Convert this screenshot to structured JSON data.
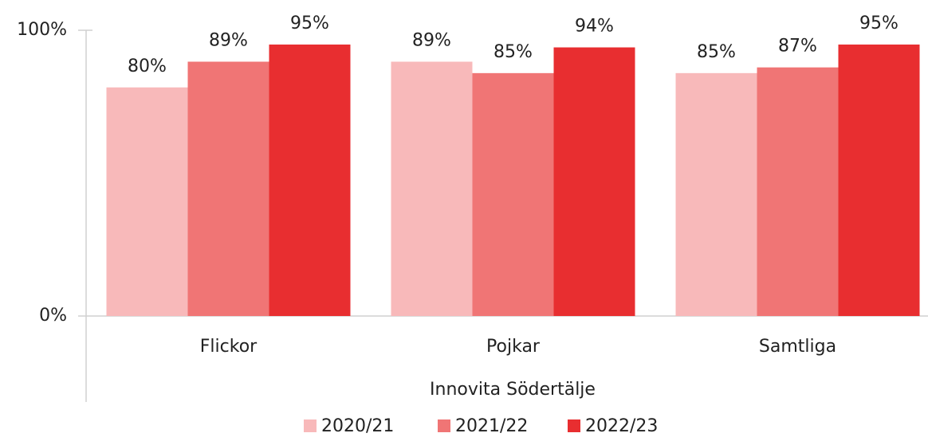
{
  "chart_data": {
    "type": "bar",
    "categories": [
      "Flickor",
      "Pojkar",
      "Samtliga"
    ],
    "xlabel": "Innovita Södertälje",
    "series": [
      {
        "name": "2020/21",
        "color": "#f8b9ba",
        "values": [
          80,
          89,
          85
        ],
        "value_labels": [
          "80%",
          "89%",
          "85%"
        ]
      },
      {
        "name": "2021/22",
        "color": "#f07575",
        "values": [
          89,
          85,
          87
        ],
        "value_labels": [
          "89%",
          "85%",
          "87%"
        ]
      },
      {
        "name": "2022/23",
        "color": "#e82e30",
        "values": [
          95,
          94,
          95
        ],
        "value_labels": [
          "95%",
          "94%",
          "95%"
        ]
      }
    ],
    "ylim": [
      0,
      100
    ],
    "yticks": [
      {
        "value": 0,
        "label": "0%"
      },
      {
        "value": 100,
        "label": "100%"
      }
    ],
    "legend": "bottom"
  }
}
